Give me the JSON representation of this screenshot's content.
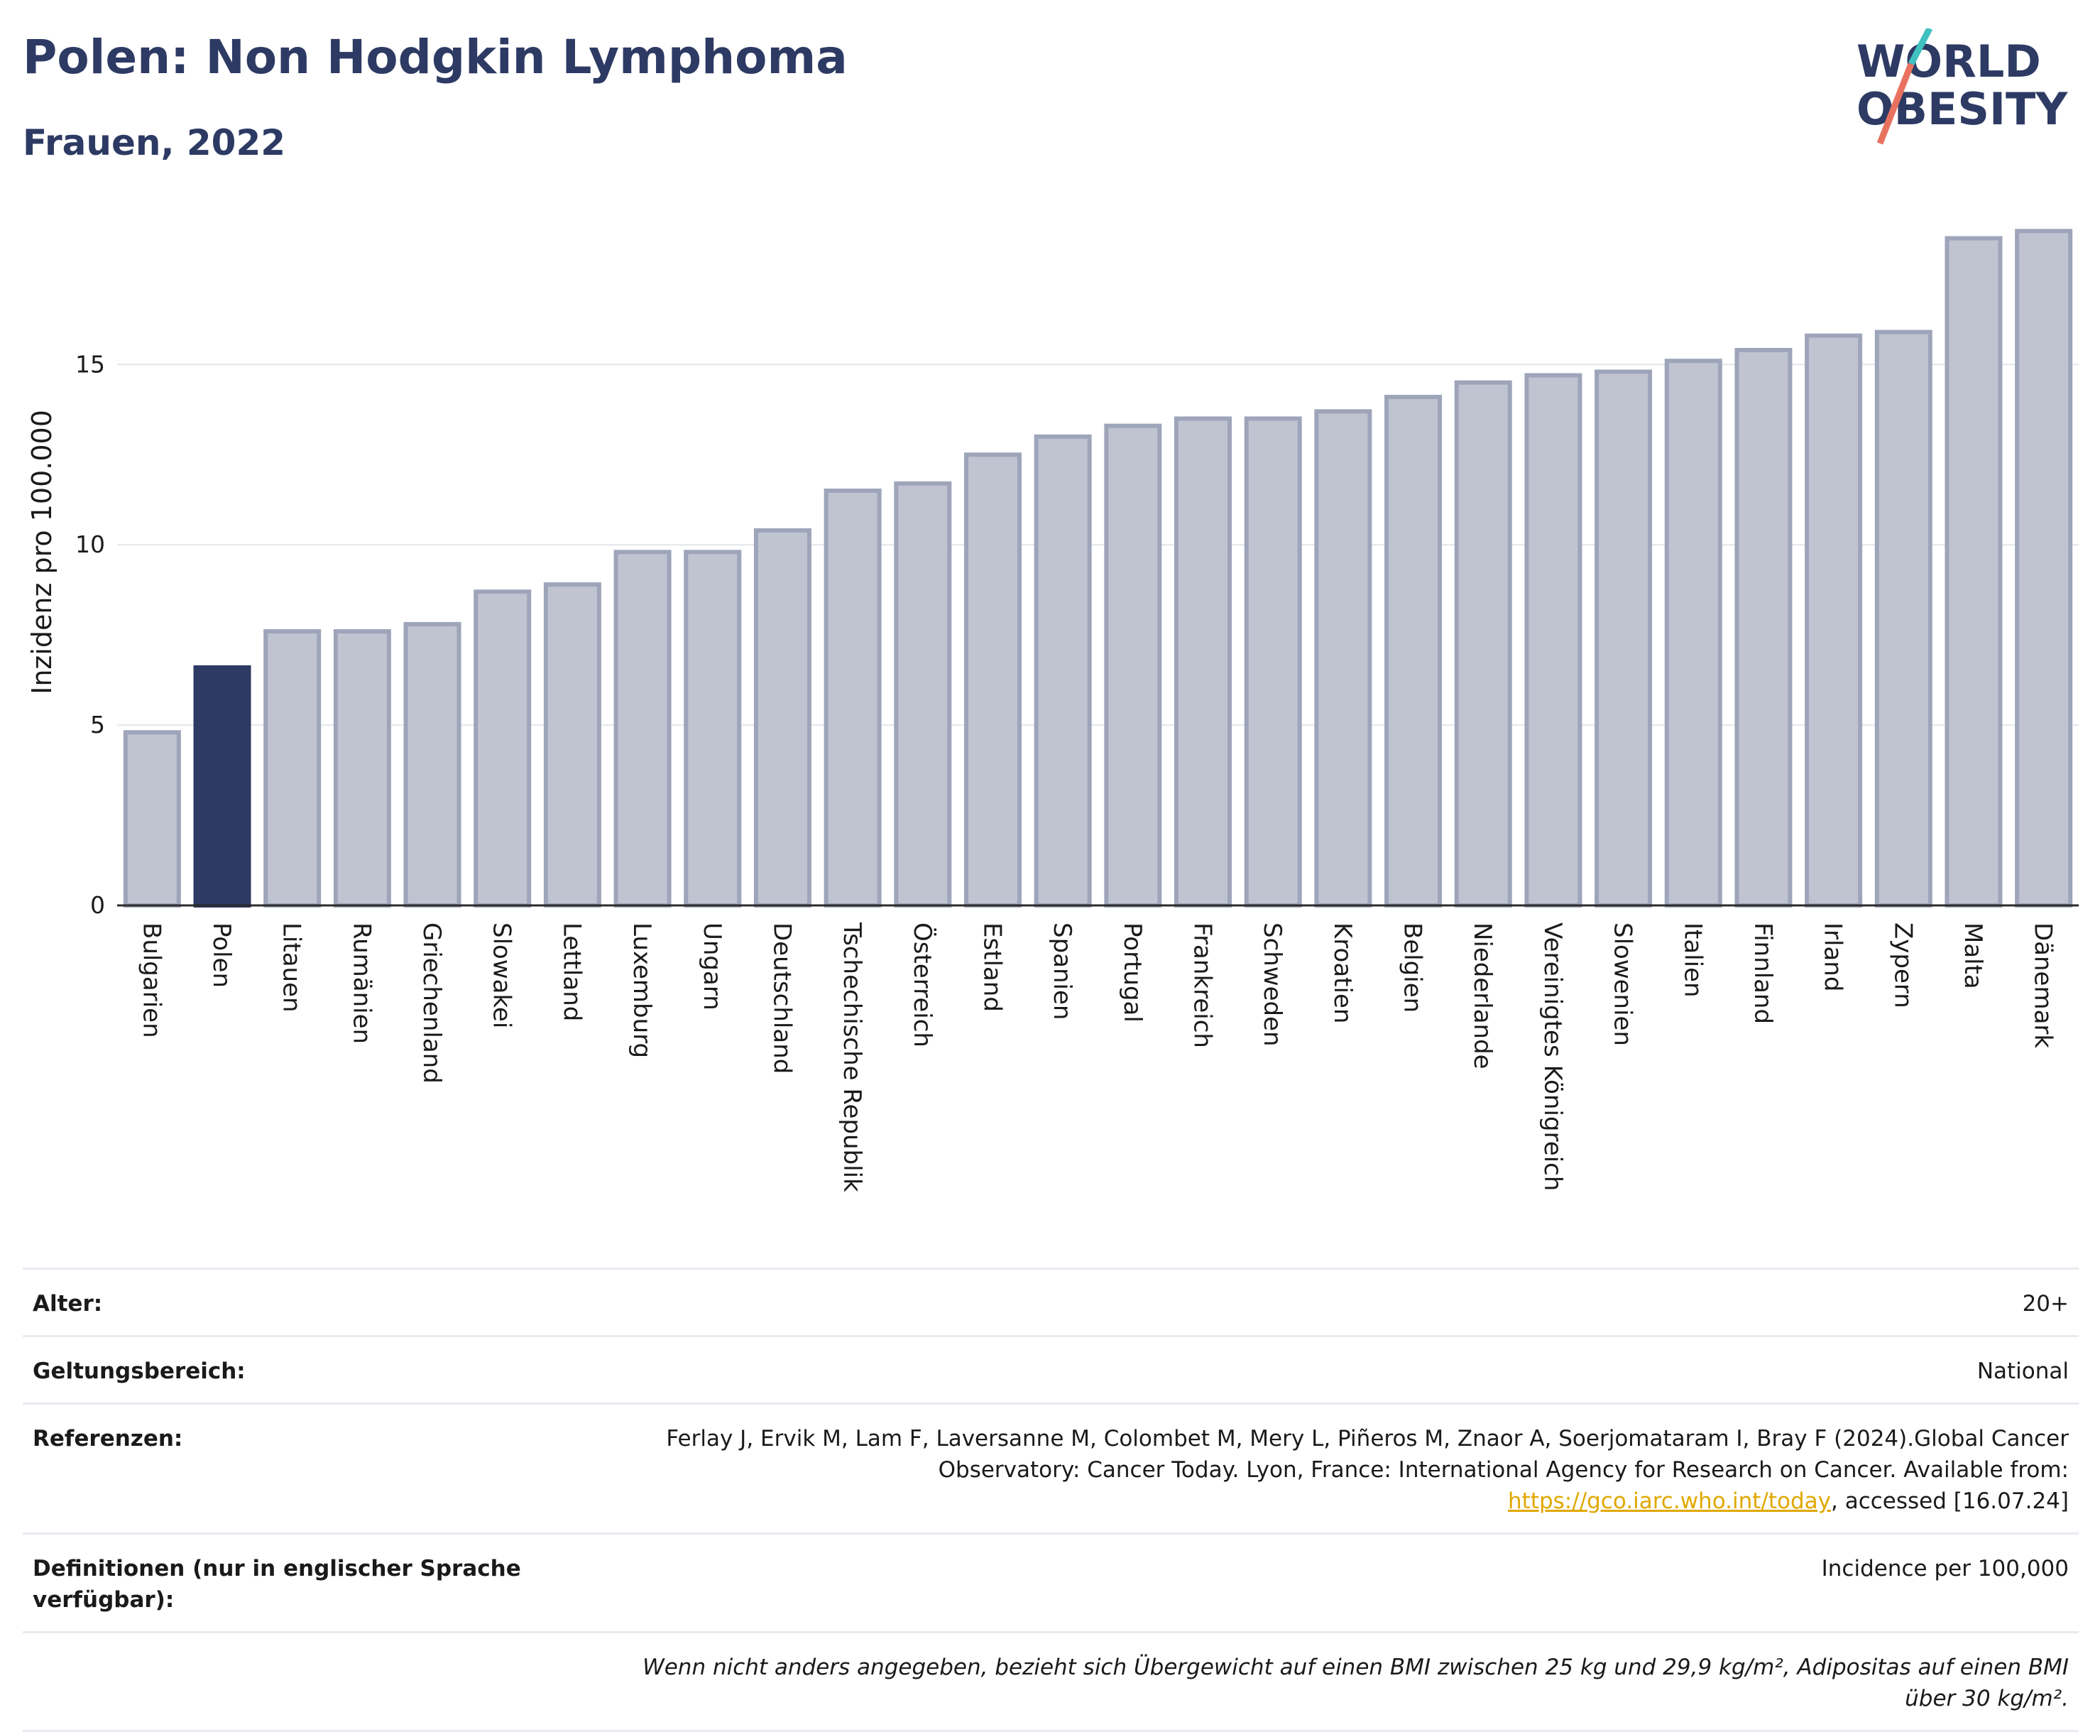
{
  "title": "Polen: Non Hodgkin Lymphoma",
  "subtitle": "Frauen, 2022",
  "logo": {
    "line1": "WORLD",
    "line2": "OBESITY"
  },
  "colors": {
    "highlight": "#2d3a63",
    "bar": "#c0c4d1",
    "bar_stroke": "#9ea5ba",
    "title": "#2d3a63",
    "grid": "#e4e6ec",
    "logo_teal": "#3fc1c0",
    "logo_coral": "#e8725f"
  },
  "chart_data": {
    "type": "bar",
    "categories": [
      "Bulgarien",
      "Polen",
      "Litauen",
      "Rumänien",
      "Griechenland",
      "Slowakei",
      "Lettland",
      "Luxemburg",
      "Ungarn",
      "Deutschland",
      "Tschechische Republik",
      "Österreich",
      "Estland",
      "Spanien",
      "Portugal",
      "Frankreich",
      "Schweden",
      "Kroatien",
      "Belgien",
      "Niederlande",
      "Vereinigtes Königreich",
      "Slowenien",
      "Italien",
      "Finnland",
      "Irland",
      "Zypern",
      "Malta",
      "Dänemark"
    ],
    "values": [
      4.8,
      6.6,
      7.6,
      7.6,
      7.8,
      8.7,
      8.9,
      9.8,
      9.8,
      10.4,
      11.5,
      11.7,
      12.5,
      13.0,
      13.3,
      13.5,
      13.5,
      13.7,
      14.1,
      14.5,
      14.7,
      14.8,
      15.1,
      15.4,
      15.8,
      15.9,
      18.5,
      18.7
    ],
    "highlight": "Polen",
    "ylabel": "Inzidenz pro 100.000",
    "xlabel": "",
    "ylim": [
      0,
      19.2
    ],
    "yticks": [
      0,
      5,
      10,
      15
    ],
    "ytick_labels": [
      "0",
      "5",
      "10",
      "15"
    ],
    "grid": true
  },
  "meta": {
    "age_label": "Alter:",
    "age_value": "20+",
    "scope_label": "Geltungsbereich:",
    "scope_value": "National",
    "ref_label": "Referenzen:",
    "ref_text_1": "Ferlay J, Ervik M, Lam F, Laversanne M, Colombet M, Mery L, Piñeros M, Znaor A, Soerjomataram I, Bray F (2024).Global Cancer Observatory: Cancer Today. Lyon, France: International Agency for Research on Cancer. Available from: ",
    "ref_link": "https://gco.iarc.who.int/today",
    "ref_text_2": ", accessed [16.07.24]",
    "def_label": "Definitionen (nur in englischer Sprache verfügbar):",
    "def_value": "Incidence per 100,000",
    "note": "Wenn nicht anders angegeben, bezieht sich Übergewicht auf einen BMI zwischen 25 kg und 29,9 kg/m², Adipositas auf einen BMI über 30 kg/m²."
  }
}
